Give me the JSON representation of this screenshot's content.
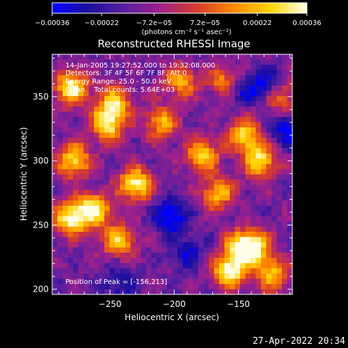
{
  "chart_data": {
    "type": "heatmap",
    "title": "Reconstructed RHESSI Image",
    "xlabel": "Heliocentric X (arcsec)",
    "ylabel": "Heliocentric Y (arcsec)",
    "xlim": [
      -295,
      -108
    ],
    "ylim": [
      196,
      383
    ],
    "xticks": [
      -250,
      -200,
      -150
    ],
    "yticks": [
      200,
      250,
      300,
      350
    ],
    "xtick_labels": [
      "−250",
      "−200",
      "−150"
    ],
    "ytick_labels": [
      "200",
      "250",
      "300",
      "350"
    ],
    "colorbar": {
      "min": -0.00036,
      "max": 0.00036,
      "ticks": [
        -0.00036,
        -0.00022,
        -7.2e-05,
        7.2e-05,
        0.00022,
        0.00036
      ],
      "tick_labels": [
        "−0.00036",
        "−0.00022",
        "−7.2e−05",
        "7.2e−05",
        "0.00022",
        "0.00036"
      ],
      "label": "(photons cm⁻² s⁻¹ asec⁻²)",
      "colors": [
        "#0000ff",
        "#1e0f9c",
        "#5b1f9f",
        "#a0208a",
        "#d83c2a",
        "#ff8a00",
        "#ffd400",
        "#ffffe8"
      ]
    },
    "annotations": {
      "time_line": "14-Jan-2005 19:27:52.000 to 19:32:08.000",
      "detectors_line": "Detectors: 3F 4F 5F 6F 7F 8F, Att 0",
      "energy_line": "Energy Range: 25.0 - 50.0 keV",
      "clean_line": "Clean    Total counts: 5.64E+03",
      "peak_line": "Position of Peak = [-156,213]"
    },
    "peak_position": [
      -156,
      213
    ],
    "hotspots": [
      {
        "x": -280,
        "y": 357,
        "amp": 0.00036
      },
      {
        "x": -278,
        "y": 300,
        "amp": 0.0003
      },
      {
        "x": -252,
        "y": 328,
        "amp": 0.00032
      },
      {
        "x": -247,
        "y": 345,
        "amp": 0.00026
      },
      {
        "x": -230,
        "y": 282,
        "amp": 0.00034
      },
      {
        "x": -263,
        "y": 262,
        "amp": 0.00036
      },
      {
        "x": -281,
        "y": 255,
        "amp": 0.00033
      },
      {
        "x": -243,
        "y": 238,
        "amp": 0.00026
      },
      {
        "x": -178,
        "y": 305,
        "amp": 0.00026
      },
      {
        "x": -166,
        "y": 275,
        "amp": 0.00024
      },
      {
        "x": -145,
        "y": 320,
        "amp": 0.00028
      },
      {
        "x": -133,
        "y": 300,
        "amp": 0.0003
      },
      {
        "x": -157,
        "y": 214,
        "amp": 0.00036
      },
      {
        "x": -148,
        "y": 232,
        "amp": 0.00028
      },
      {
        "x": -138,
        "y": 233,
        "amp": 0.00026
      },
      {
        "x": -123,
        "y": 212,
        "amp": 0.00024
      },
      {
        "x": -210,
        "y": 330,
        "amp": 0.00022
      },
      {
        "x": -195,
        "y": 362,
        "amp": 0.0002
      },
      {
        "x": -160,
        "y": 362,
        "amp": 0.00018
      },
      {
        "x": -118,
        "y": 350,
        "amp": 0.00018
      }
    ],
    "coldspots": [
      {
        "x": -203,
        "y": 257,
        "amp": -0.0003
      },
      {
        "x": -128,
        "y": 358,
        "amp": -0.00026
      },
      {
        "x": -113,
        "y": 325,
        "amp": -0.00024
      },
      {
        "x": -148,
        "y": 356,
        "amp": -0.0002
      },
      {
        "x": -190,
        "y": 228,
        "amp": -0.00018
      },
      {
        "x": -243,
        "y": 205,
        "amp": -0.00018
      }
    ]
  },
  "footer": {
    "date": "27-Apr-2022 20:34"
  }
}
